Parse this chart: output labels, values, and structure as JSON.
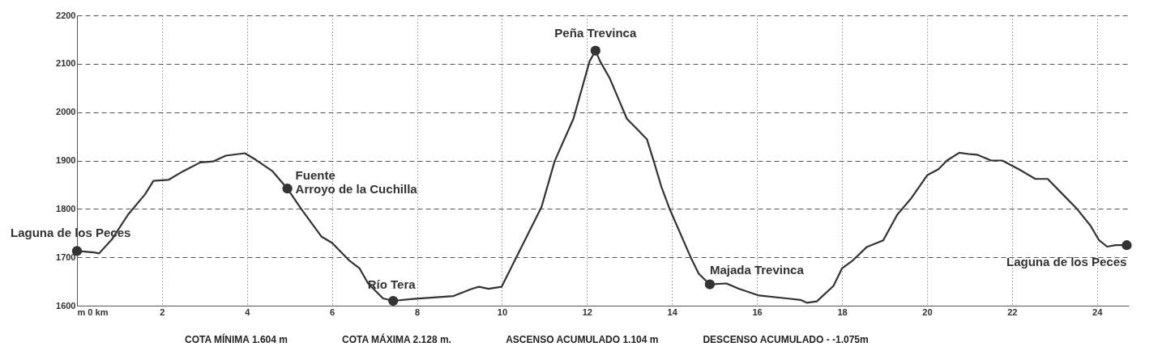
{
  "chart_data": {
    "type": "line",
    "x": [
      0,
      0.4,
      0.52,
      0.83,
      1.2,
      1.6,
      1.8,
      2.15,
      2.5,
      2.9,
      3.2,
      3.5,
      3.95,
      4.2,
      4.6,
      4.95,
      5.3,
      5.75,
      6.0,
      6.4,
      6.65,
      6.85,
      7.2,
      7.44,
      7.92,
      8.86,
      9.3,
      9.46,
      9.68,
      9.99,
      10.43,
      10.93,
      11.24,
      11.68,
      12.06,
      12.2,
      12.31,
      12.53,
      12.94,
      13.19,
      13.41,
      13.56,
      13.75,
      13.94,
      14.44,
      14.63,
      14.89,
      15.28,
      15.57,
      16.05,
      16.7,
      17.02,
      17.18,
      17.41,
      17.8,
      18.0,
      18.26,
      18.58,
      18.97,
      19.3,
      19.62,
      20.01,
      20.27,
      20.47,
      20.76,
      21.02,
      21.18,
      21.51,
      21.77,
      22.16,
      22.55,
      22.84,
      23.14,
      23.53,
      23.85,
      24.05,
      24.24,
      24.44,
      24.7
    ],
    "series": [
      {
        "color": "#333333",
        "values": [
          1713,
          1710,
          1708,
          1738,
          1788,
          1830,
          1858,
          1860,
          1878,
          1896,
          1898,
          1910,
          1915,
          1902,
          1878,
          1842,
          1797,
          1743,
          1730,
          1694,
          1677,
          1646,
          1615,
          1610,
          1614,
          1620,
          1635,
          1639,
          1635,
          1639,
          1716,
          1804,
          1899,
          1986,
          2105,
          2127,
          2105,
          2071,
          1986,
          1964,
          1944,
          1902,
          1846,
          1801,
          1700,
          1666,
          1644,
          1646,
          1635,
          1621,
          1615,
          1612,
          1606,
          1609,
          1641,
          1677,
          1694,
          1721,
          1735,
          1788,
          1821,
          1870,
          1882,
          1900,
          1916,
          1913,
          1912,
          1900,
          1900,
          1882,
          1862,
          1862,
          1835,
          1800,
          1765,
          1735,
          1722,
          1725,
          1725
        ]
      }
    ],
    "xlim": [
      0,
      24.75
    ],
    "xticks": [
      {
        "value": 0,
        "label": "m 0 km"
      },
      2,
      4,
      6,
      8,
      10,
      12,
      14,
      16,
      18,
      20,
      22,
      24
    ],
    "ylim": [
      1600,
      2200
    ],
    "yticks": [
      1600,
      1700,
      1800,
      1900,
      2000,
      2100,
      2200
    ],
    "grid": true,
    "line_style": "solid",
    "marker": "none",
    "annotations": [
      {
        "text": "Laguna de los Peces",
        "x": 0,
        "y": 1713
      },
      {
        "text": "Fuente\nArroyo de la Cuchilla",
        "x": 4.95,
        "y": 1842
      },
      {
        "text": "Río Tera",
        "x": 7.44,
        "y": 1610
      },
      {
        "text": "Peña Trevinca",
        "x": 12.2,
        "y": 2127
      },
      {
        "text": "Majada Trevinca",
        "x": 14.89,
        "y": 1644
      },
      {
        "text": "Laguna de los Peces",
        "x": 24.7,
        "y": 1725
      },
      "COTA MÍNIMA  1.604 m",
      "COTA MÁXIMA  2.128 m.",
      "ASCENSO ACUMULADO  1.104 m",
      "DESCENSO ACUMULADO - -1.075m"
    ]
  }
}
